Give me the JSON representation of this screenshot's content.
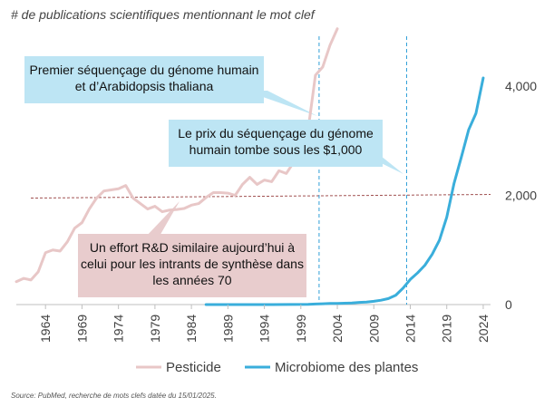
{
  "chart_data": {
    "type": "line",
    "title": "# de publications scientifiques mentionnant le mot clef",
    "x_ticks": [
      "1964",
      "1969",
      "1974",
      "1979",
      "1984",
      "1989",
      "1994",
      "1999",
      "2004",
      "2009",
      "2014",
      "2019",
      "2024"
    ],
    "y_ticks": [
      "0",
      "2,000",
      "4,000"
    ],
    "ylim": [
      0,
      4700
    ],
    "xlim": [
      1960,
      2025
    ],
    "grid": false,
    "legend_position": "bottom",
    "series": [
      {
        "name": "Pesticide",
        "color": "#e8c7c7",
        "x": [
          1960,
          1961,
          1962,
          1963,
          1964,
          1965,
          1966,
          1967,
          1968,
          1969,
          1970,
          1971,
          1972,
          1973,
          1974,
          1975,
          1976,
          1977,
          1978,
          1979,
          1980,
          1981,
          1982,
          1983,
          1984,
          1985,
          1986,
          1987,
          1988,
          1989,
          1990,
          1991,
          1992,
          1993,
          1994,
          1995,
          1996,
          1997,
          1998,
          1999,
          2000,
          2001,
          2002,
          2003,
          2004
        ],
        "values": [
          420,
          480,
          450,
          600,
          950,
          1000,
          980,
          1150,
          1400,
          1500,
          1750,
          1950,
          2080,
          2100,
          2120,
          2180,
          1950,
          1850,
          1750,
          1800,
          1700,
          1730,
          1740,
          1760,
          1820,
          1850,
          1960,
          2050,
          2050,
          2040,
          2000,
          2200,
          2330,
          2200,
          2280,
          2250,
          2450,
          2400,
          2600,
          2700,
          3200,
          4200,
          4350,
          4750,
          5050
        ]
      },
      {
        "name": "Microbiome des plantes",
        "color": "#3aaedb",
        "x": [
          1986,
          1990,
          1995,
          2000,
          2001,
          2002,
          2003,
          2004,
          2005,
          2006,
          2007,
          2008,
          2009,
          2010,
          2011,
          2012,
          2013,
          2014,
          2015,
          2016,
          2017,
          2018,
          2019,
          2020,
          2021,
          2022,
          2023,
          2024
        ],
        "values": [
          0,
          0,
          0,
          5,
          10,
          15,
          20,
          20,
          25,
          30,
          40,
          45,
          60,
          80,
          110,
          170,
          300,
          460,
          580,
          720,
          920,
          1180,
          1600,
          2220,
          2700,
          3200,
          3500,
          4150
        ]
      }
    ],
    "reference_line": {
      "value": 1950,
      "color": "#a05050"
    },
    "vlines": [
      2001.5,
      2013.5
    ],
    "annotations": [
      "Premier séquençage du génome humain et d’Arabidopsis thaliana",
      "Le prix du séquençage du génome humain tombe sous les $1,000",
      "Un effort R&D similaire aujourd’hui à celui pour les intrants de synthèse dans les années 70"
    ],
    "source": "Source: PubMed, recherche de mots clefs datée du 15/01/2025."
  },
  "colors": {
    "callout_blue": "#bde5f4",
    "callout_pink": "#e8cccd",
    "vline": "#2f9fd8"
  }
}
